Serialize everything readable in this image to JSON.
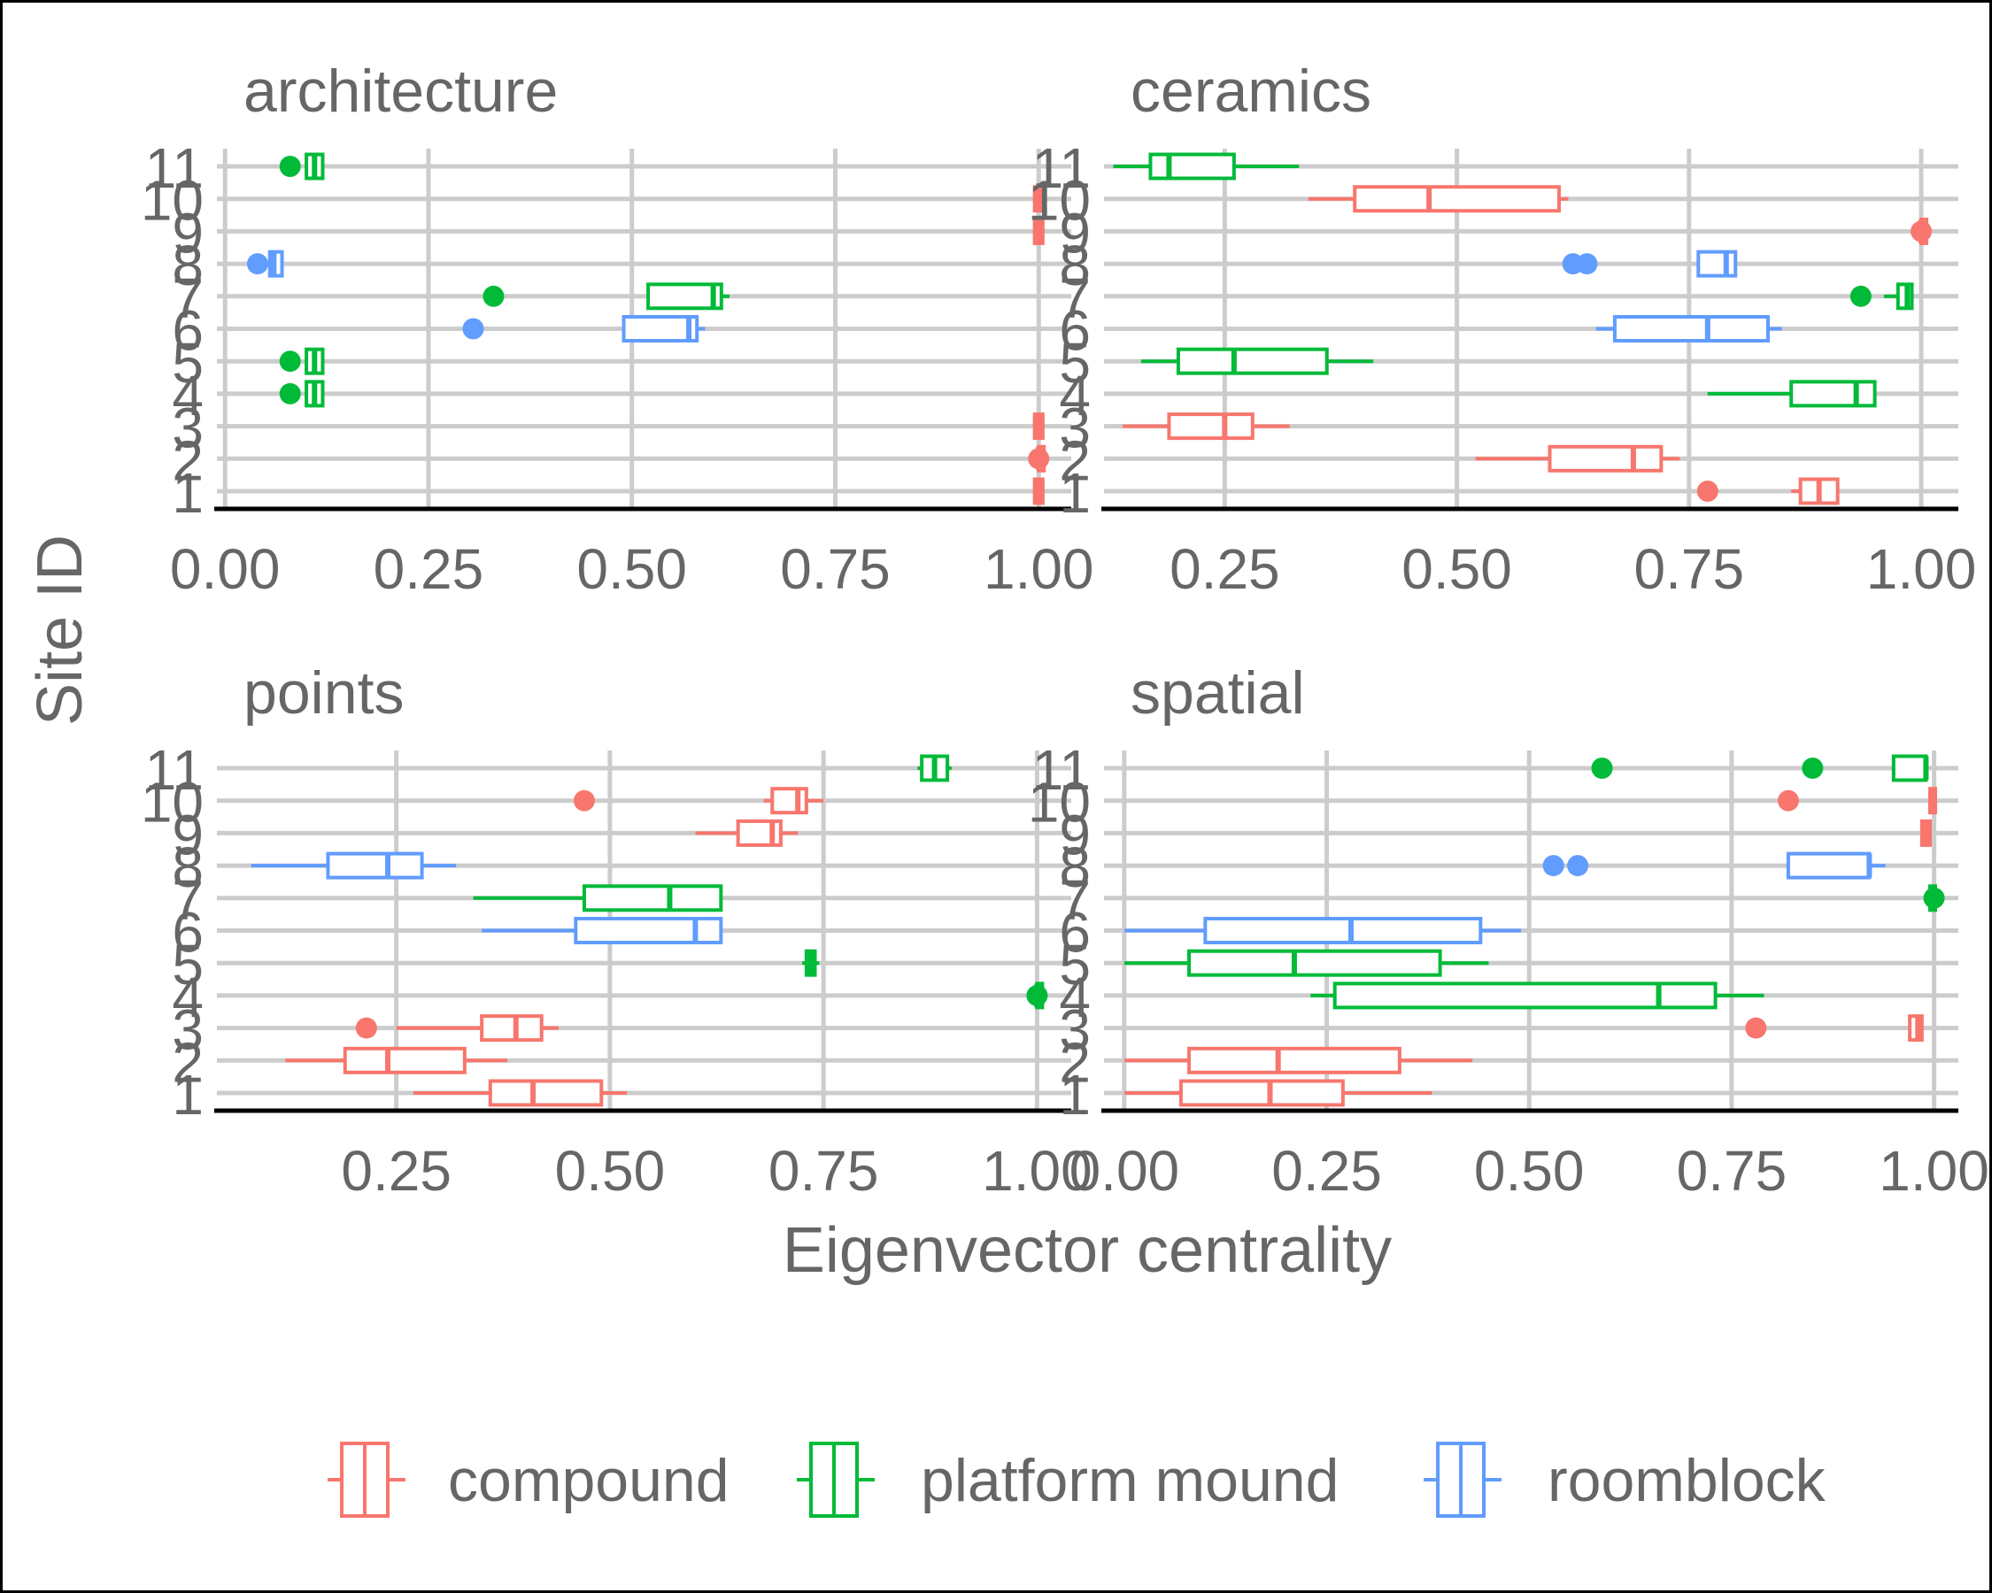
{
  "chart_data": {
    "type": "boxplot",
    "xlabel": "Eigenvector centrality",
    "ylabel": "Site ID",
    "orientation": "horizontal",
    "facets": [
      "architecture",
      "ceramics",
      "points",
      "spatial"
    ],
    "y_categories": [
      "1",
      "2",
      "3",
      "4",
      "5",
      "6",
      "7",
      "8",
      "9",
      "10",
      "11"
    ],
    "legend": {
      "position": "bottom",
      "entries": [
        {
          "name": "compound",
          "color": "#F8766D"
        },
        {
          "name": "platform mound",
          "color": "#00BA38"
        },
        {
          "name": "roomblock",
          "color": "#619CFF"
        }
      ]
    },
    "grid": true,
    "panels": [
      {
        "title": "architecture",
        "xlim": [
          -0.01,
          1.04
        ],
        "xticks": [
          "0.00",
          "0.25",
          "0.50",
          "0.75",
          "1.00"
        ],
        "xtick_values": [
          0,
          0.25,
          0.5,
          0.75,
          1.0
        ],
        "boxes": [
          {
            "site": 11,
            "group": "platform mound",
            "wmin": 0.1,
            "q1": 0.1,
            "median": 0.11,
            "q3": 0.12,
            "wmax": 0.12,
            "outliers": [
              0.08
            ]
          },
          {
            "site": 10,
            "group": "compound",
            "wmin": 0.995,
            "q1": 0.995,
            "median": 1.0,
            "q3": 1.005,
            "wmax": 1.005,
            "outliers": []
          },
          {
            "site": 9,
            "group": "compound",
            "wmin": 0.995,
            "q1": 0.995,
            "median": 1.0,
            "q3": 1.005,
            "wmax": 1.005,
            "outliers": []
          },
          {
            "site": 8,
            "group": "roomblock",
            "wmin": 0.055,
            "q1": 0.055,
            "median": 0.06,
            "q3": 0.07,
            "wmax": 0.07,
            "outliers": [
              0.04
            ]
          },
          {
            "site": 7,
            "group": "platform mound",
            "wmin": 0.52,
            "q1": 0.52,
            "median": 0.6,
            "q3": 0.61,
            "wmax": 0.62,
            "outliers": [
              0.33
            ]
          },
          {
            "site": 6,
            "group": "roomblock",
            "wmin": 0.49,
            "q1": 0.49,
            "median": 0.57,
            "q3": 0.58,
            "wmax": 0.59,
            "outliers": [
              0.305
            ]
          },
          {
            "site": 5,
            "group": "platform mound",
            "wmin": 0.1,
            "q1": 0.1,
            "median": 0.11,
            "q3": 0.12,
            "wmax": 0.12,
            "outliers": [
              0.08
            ]
          },
          {
            "site": 4,
            "group": "platform mound",
            "wmin": 0.1,
            "q1": 0.1,
            "median": 0.11,
            "q3": 0.12,
            "wmax": 0.12,
            "outliers": [
              0.08
            ]
          },
          {
            "site": 3,
            "group": "compound",
            "wmin": 0.995,
            "q1": 0.995,
            "median": 1.0,
            "q3": 1.005,
            "wmax": 1.005,
            "outliers": []
          },
          {
            "site": 2,
            "group": "compound",
            "wmin": 1.0,
            "q1": 1.0,
            "median": 1.0,
            "q3": 1.0,
            "wmax": 1.0,
            "outliers": [
              1.0
            ]
          },
          {
            "site": 1,
            "group": "compound",
            "wmin": 0.995,
            "q1": 0.995,
            "median": 1.0,
            "q3": 1.005,
            "wmax": 1.005,
            "outliers": []
          }
        ]
      },
      {
        "title": "ceramics",
        "xlim": [
          0.12,
          1.04
        ],
        "xticks": [
          "0.25",
          "0.50",
          "0.75",
          "1.00"
        ],
        "xtick_values": [
          0.25,
          0.5,
          0.75,
          1.0
        ],
        "boxes": [
          {
            "site": 11,
            "group": "platform mound",
            "wmin": 0.13,
            "q1": 0.17,
            "median": 0.19,
            "q3": 0.26,
            "wmax": 0.33,
            "outliers": []
          },
          {
            "site": 10,
            "group": "compound",
            "wmin": 0.34,
            "q1": 0.39,
            "median": 0.47,
            "q3": 0.61,
            "wmax": 0.62,
            "outliers": []
          },
          {
            "site": 9,
            "group": "compound",
            "wmin": 1.0,
            "q1": 1.0,
            "median": 1.0,
            "q3": 1.0,
            "wmax": 1.0,
            "outliers": [
              1.0
            ]
          },
          {
            "site": 8,
            "group": "roomblock",
            "wmin": 0.76,
            "q1": 0.76,
            "median": 0.79,
            "q3": 0.8,
            "wmax": 0.8,
            "outliers": [
              0.625,
              0.64
            ]
          },
          {
            "site": 7,
            "group": "platform mound",
            "wmin": 0.96,
            "q1": 0.975,
            "median": 0.985,
            "q3": 0.99,
            "wmax": 0.99,
            "outliers": [
              0.935
            ]
          },
          {
            "site": 6,
            "group": "roomblock",
            "wmin": 0.65,
            "q1": 0.67,
            "median": 0.77,
            "q3": 0.835,
            "wmax": 0.85,
            "outliers": []
          },
          {
            "site": 5,
            "group": "platform mound",
            "wmin": 0.16,
            "q1": 0.2,
            "median": 0.26,
            "q3": 0.36,
            "wmax": 0.41,
            "outliers": []
          },
          {
            "site": 4,
            "group": "platform mound",
            "wmin": 0.77,
            "q1": 0.86,
            "median": 0.93,
            "q3": 0.95,
            "wmax": 0.95,
            "outliers": []
          },
          {
            "site": 3,
            "group": "compound",
            "wmin": 0.14,
            "q1": 0.19,
            "median": 0.25,
            "q3": 0.28,
            "wmax": 0.32,
            "outliers": []
          },
          {
            "site": 2,
            "group": "compound",
            "wmin": 0.52,
            "q1": 0.6,
            "median": 0.69,
            "q3": 0.72,
            "wmax": 0.74,
            "outliers": []
          },
          {
            "site": 1,
            "group": "compound",
            "wmin": 0.86,
            "q1": 0.87,
            "median": 0.89,
            "q3": 0.91,
            "wmax": 0.91,
            "outliers": [
              0.77
            ]
          }
        ]
      },
      {
        "title": "points",
        "xlim": [
          0.04,
          1.04
        ],
        "xticks": [
          "0.25",
          "0.50",
          "0.75",
          "1.00"
        ],
        "xtick_values": [
          0.25,
          0.5,
          0.75,
          1.0
        ],
        "boxes": [
          {
            "site": 11,
            "group": "platform mound",
            "wmin": 0.86,
            "q1": 0.865,
            "median": 0.88,
            "q3": 0.895,
            "wmax": 0.9,
            "outliers": []
          },
          {
            "site": 10,
            "group": "compound",
            "wmin": 0.68,
            "q1": 0.69,
            "median": 0.72,
            "q3": 0.73,
            "wmax": 0.75,
            "outliers": [
              0.47
            ]
          },
          {
            "site": 9,
            "group": "compound",
            "wmin": 0.6,
            "q1": 0.65,
            "median": 0.69,
            "q3": 0.7,
            "wmax": 0.72,
            "outliers": []
          },
          {
            "site": 8,
            "group": "roomblock",
            "wmin": 0.08,
            "q1": 0.17,
            "median": 0.24,
            "q3": 0.28,
            "wmax": 0.32,
            "outliers": []
          },
          {
            "site": 7,
            "group": "platform mound",
            "wmin": 0.34,
            "q1": 0.47,
            "median": 0.57,
            "q3": 0.63,
            "wmax": 0.63,
            "outliers": []
          },
          {
            "site": 6,
            "group": "roomblock",
            "wmin": 0.35,
            "q1": 0.46,
            "median": 0.6,
            "q3": 0.63,
            "wmax": 0.63,
            "outliers": []
          },
          {
            "site": 5,
            "group": "platform mound",
            "wmin": 0.725,
            "q1": 0.73,
            "median": 0.735,
            "q3": 0.74,
            "wmax": 0.745,
            "outliers": []
          },
          {
            "site": 4,
            "group": "platform mound",
            "wmin": 1.0,
            "q1": 1.0,
            "median": 1.0,
            "q3": 1.0,
            "wmax": 1.0,
            "outliers": [
              1.0
            ]
          },
          {
            "site": 3,
            "group": "compound",
            "wmin": 0.25,
            "q1": 0.35,
            "median": 0.39,
            "q3": 0.42,
            "wmax": 0.44,
            "outliers": [
              0.215
            ]
          },
          {
            "site": 2,
            "group": "compound",
            "wmin": 0.12,
            "q1": 0.19,
            "median": 0.24,
            "q3": 0.33,
            "wmax": 0.38,
            "outliers": []
          },
          {
            "site": 1,
            "group": "compound",
            "wmin": 0.27,
            "q1": 0.36,
            "median": 0.41,
            "q3": 0.49,
            "wmax": 0.52,
            "outliers": []
          }
        ]
      },
      {
        "title": "spatial",
        "xlim": [
          -0.025,
          1.03
        ],
        "xticks": [
          "0.00",
          "0.25",
          "0.50",
          "0.75",
          "1.00"
        ],
        "xtick_values": [
          0,
          0.25,
          0.5,
          0.75,
          1.0
        ],
        "boxes": [
          {
            "site": 11,
            "group": "platform mound",
            "wmin": 0.95,
            "q1": 0.95,
            "median": 0.99,
            "q3": 0.99,
            "wmax": 0.99,
            "outliers": [
              0.59,
              0.85
            ]
          },
          {
            "site": 10,
            "group": "compound",
            "wmin": 0.995,
            "q1": 0.995,
            "median": 1.0,
            "q3": 1.0,
            "wmax": 1.0,
            "outliers": [
              0.82
            ]
          },
          {
            "site": 9,
            "group": "compound",
            "wmin": 0.985,
            "q1": 0.985,
            "median": 0.99,
            "q3": 0.995,
            "wmax": 0.995,
            "outliers": []
          },
          {
            "site": 8,
            "group": "roomblock",
            "wmin": 0.82,
            "q1": 0.82,
            "median": 0.92,
            "q3": 0.92,
            "wmax": 0.94,
            "outliers": [
              0.53,
              0.56
            ]
          },
          {
            "site": 7,
            "group": "platform mound",
            "wmin": 0.995,
            "q1": 0.995,
            "median": 1.0,
            "q3": 1.0,
            "wmax": 1.0,
            "outliers": [
              1.0
            ]
          },
          {
            "site": 6,
            "group": "roomblock",
            "wmin": 0.0,
            "q1": 0.1,
            "median": 0.28,
            "q3": 0.44,
            "wmax": 0.49,
            "outliers": []
          },
          {
            "site": 5,
            "group": "platform mound",
            "wmin": 0.0,
            "q1": 0.08,
            "median": 0.21,
            "q3": 0.39,
            "wmax": 0.45,
            "outliers": []
          },
          {
            "site": 4,
            "group": "platform mound",
            "wmin": 0.23,
            "q1": 0.26,
            "median": 0.66,
            "q3": 0.73,
            "wmax": 0.79,
            "outliers": []
          },
          {
            "site": 3,
            "group": "compound",
            "wmin": 0.97,
            "q1": 0.97,
            "median": 0.98,
            "q3": 0.985,
            "wmax": 0.985,
            "outliers": [
              0.78
            ]
          },
          {
            "site": 2,
            "group": "compound",
            "wmin": 0.0,
            "q1": 0.08,
            "median": 0.19,
            "q3": 0.34,
            "wmax": 0.43,
            "outliers": []
          },
          {
            "site": 1,
            "group": "compound",
            "wmin": 0.0,
            "q1": 0.07,
            "median": 0.18,
            "q3": 0.27,
            "wmax": 0.38,
            "outliers": []
          }
        ]
      }
    ]
  }
}
